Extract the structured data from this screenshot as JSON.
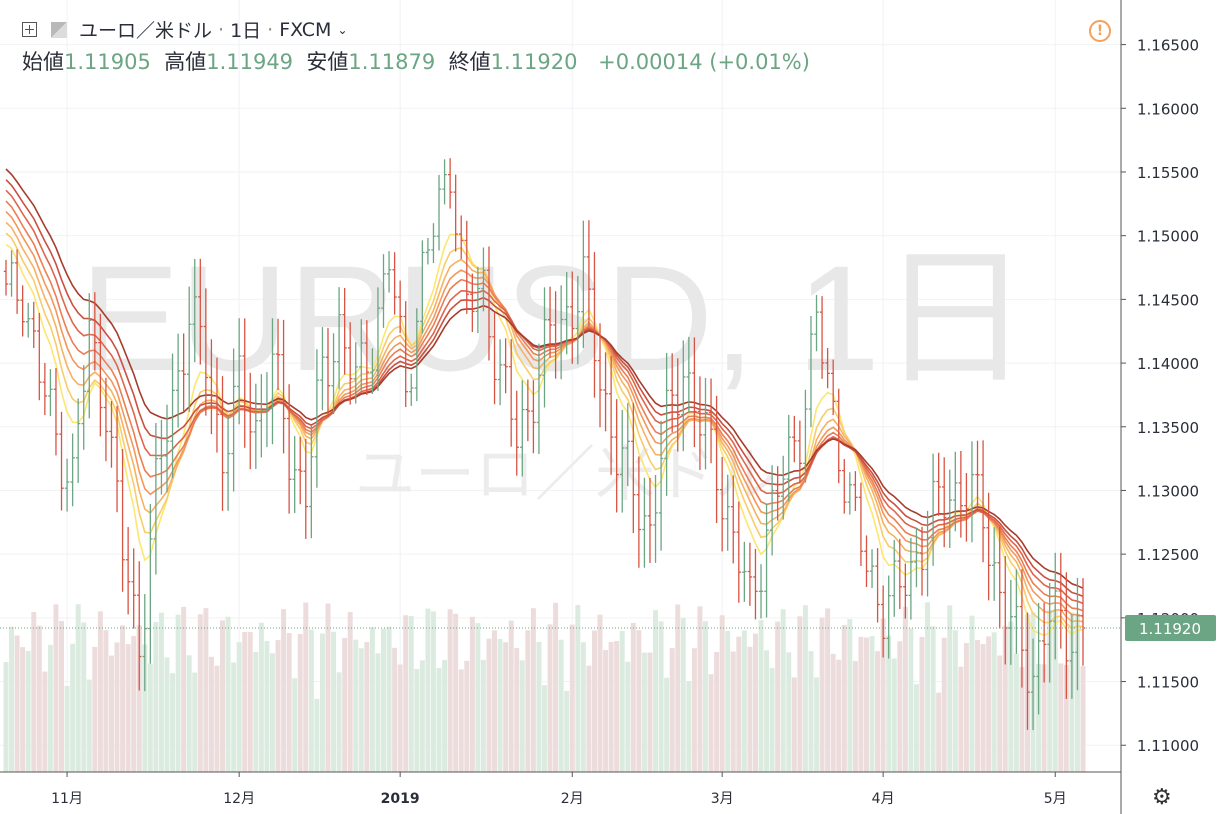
{
  "header": {
    "symbol_name": "ユーロ／米ドル",
    "interval": "1日",
    "exchange": "FXCM",
    "dropdown_icon": "chevron-down-icon",
    "open_label": "始値",
    "open_value": "1.11905",
    "high_label": "高値",
    "high_value": "1.11949",
    "low_label": "安値",
    "low_value": "1.11879",
    "close_label": "終値",
    "close_value": "1.11920",
    "change": "+0.00014 (+0.01%)"
  },
  "watermark": {
    "symbol": "EURUSD, 1日",
    "name": "ユーロ／米ドル"
  },
  "colors": {
    "up": "#6ba583",
    "down": "#d75442",
    "up_vol": "#dcebe0",
    "down_vol": "#ecdcdc",
    "ribbon": [
      "#fce671",
      "#f9cc6a",
      "#f7b162",
      "#f2985c",
      "#ea7e55",
      "#de664c",
      "#c95140",
      "#a63d2c"
    ],
    "last_price_bg": "#6ba583",
    "warning": "#f5a05a"
  },
  "icons": {
    "add": "add-symbol-icon",
    "flag": "flag-icon",
    "warning": "warning-icon",
    "settings": "gear-icon"
  },
  "chart_data": {
    "type": "candlestick",
    "style": "ohlc-bars",
    "symbol": "EURUSD",
    "source": "FXCM",
    "interval": "1日",
    "y_ticks": [
      "1.16500",
      "1.16000",
      "1.15500",
      "1.15000",
      "1.14500",
      "1.14000",
      "1.13500",
      "1.13000",
      "1.12500",
      "1.12000",
      "1.11500",
      "1.11000"
    ],
    "x_ticks": [
      {
        "label": "11月",
        "bar": 11
      },
      {
        "label": "12月",
        "bar": 42
      },
      {
        "label": "2019",
        "bar": 71
      },
      {
        "label": "2月",
        "bar": 102
      },
      {
        "label": "3月",
        "bar": 129
      },
      {
        "label": "4月",
        "bar": 158
      },
      {
        "label": "5月",
        "bar": 189
      }
    ],
    "ylim": [
      1.1079,
      1.1685
    ],
    "last_price": "1.11920",
    "grid": true,
    "ribbon_indicator": "moving average ribbon (8 lines)",
    "bars_per_day_estimate": 1,
    "keyframes_close": [
      [
        0,
        1.145
      ],
      [
        3,
        1.146
      ],
      [
        6,
        1.139
      ],
      [
        9,
        1.134
      ],
      [
        12,
        1.131
      ],
      [
        15,
        1.142
      ],
      [
        18,
        1.137
      ],
      [
        21,
        1.125
      ],
      [
        24,
        1.118
      ],
      [
        27,
        1.13
      ],
      [
        30,
        1.137
      ],
      [
        33,
        1.144
      ],
      [
        36,
        1.14
      ],
      [
        39,
        1.133
      ],
      [
        42,
        1.138
      ],
      [
        45,
        1.135
      ],
      [
        48,
        1.14
      ],
      [
        51,
        1.133
      ],
      [
        54,
        1.13
      ],
      [
        57,
        1.139
      ],
      [
        60,
        1.143
      ],
      [
        63,
        1.138
      ],
      [
        66,
        1.142
      ],
      [
        69,
        1.148
      ],
      [
        72,
        1.138
      ],
      [
        75,
        1.147
      ],
      [
        78,
        1.152
      ],
      [
        80,
        1.156
      ],
      [
        83,
        1.144
      ],
      [
        86,
        1.146
      ],
      [
        89,
        1.139
      ],
      [
        92,
        1.134
      ],
      [
        95,
        1.138
      ],
      [
        98,
        1.142
      ],
      [
        101,
        1.144
      ],
      [
        104,
        1.146
      ],
      [
        107,
        1.139
      ],
      [
        110,
        1.133
      ],
      [
        113,
        1.13
      ],
      [
        116,
        1.127
      ],
      [
        119,
        1.135
      ],
      [
        122,
        1.14
      ],
      [
        125,
        1.135
      ],
      [
        128,
        1.132
      ],
      [
        131,
        1.126
      ],
      [
        134,
        1.121
      ],
      [
        137,
        1.127
      ],
      [
        140,
        1.131
      ],
      [
        143,
        1.135
      ],
      [
        146,
        1.143
      ],
      [
        149,
        1.136
      ],
      [
        152,
        1.129
      ],
      [
        155,
        1.124
      ],
      [
        158,
        1.121
      ],
      [
        161,
        1.122
      ],
      [
        164,
        1.125
      ],
      [
        167,
        1.128
      ],
      [
        170,
        1.13
      ],
      [
        173,
        1.13
      ],
      [
        176,
        1.128
      ],
      [
        179,
        1.122
      ],
      [
        182,
        1.118
      ],
      [
        185,
        1.116
      ],
      [
        188,
        1.12
      ],
      [
        191,
        1.119
      ],
      [
        194,
        1.1192
      ]
    ],
    "bar_count": 195,
    "ribbon_ends": [
      1.1212,
      1.1223,
      1.1232,
      1.124,
      1.125,
      1.126,
      1.127,
      1.1285
    ]
  }
}
